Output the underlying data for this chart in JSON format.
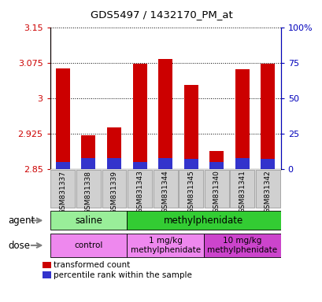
{
  "title": "GDS5497 / 1432170_PM_at",
  "samples": [
    "GSM831337",
    "GSM831338",
    "GSM831339",
    "GSM831343",
    "GSM831344",
    "GSM831345",
    "GSM831340",
    "GSM831341",
    "GSM831342"
  ],
  "transformed_count": [
    3.063,
    2.922,
    2.938,
    3.073,
    3.083,
    3.028,
    2.888,
    3.062,
    3.073
  ],
  "percentile_rank": [
    5,
    8,
    8,
    5,
    8,
    7,
    5,
    8,
    7
  ],
  "ymin": 2.85,
  "ymax": 3.15,
  "yticks": [
    2.85,
    2.925,
    3.0,
    3.075,
    3.15
  ],
  "ytick_labels": [
    "2.85",
    "2.925",
    "3",
    "3.075",
    "3.15"
  ],
  "y2min": 0,
  "y2max": 100,
  "y2ticks": [
    0,
    25,
    50,
    75,
    100
  ],
  "y2tick_labels": [
    "0",
    "25",
    "50",
    "75",
    "100%"
  ],
  "bar_color": "#cc0000",
  "percentile_color": "#3333cc",
  "bar_bottom": 2.85,
  "agent_labels": [
    {
      "label": "saline",
      "start": 0,
      "end": 3,
      "color": "#99ee99"
    },
    {
      "label": "methylphenidate",
      "start": 3,
      "end": 9,
      "color": "#33cc33"
    }
  ],
  "dose_labels": [
    {
      "label": "control",
      "start": 0,
      "end": 3,
      "color": "#ee88ee"
    },
    {
      "label": "1 mg/kg\nmethylphenidate",
      "start": 3,
      "end": 6,
      "color": "#ee88ee"
    },
    {
      "label": "10 mg/kg\nmethylphenidate",
      "start": 6,
      "end": 9,
      "color": "#cc44cc"
    }
  ],
  "legend_red_label": "transformed count",
  "legend_blue_label": "percentile rank within the sample",
  "tick_color_left": "#cc0000",
  "tick_color_right": "#0000bb"
}
